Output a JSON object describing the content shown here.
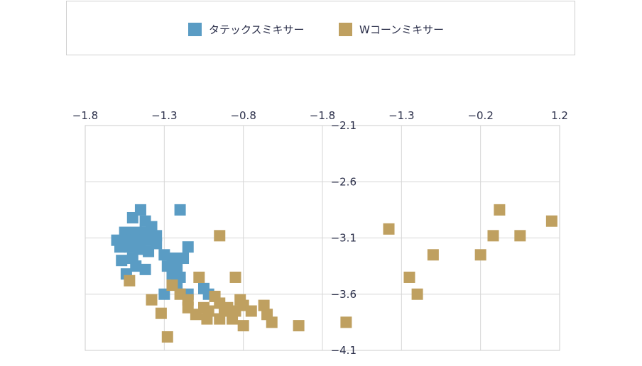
{
  "chart_data": {
    "type": "scatter",
    "title": "",
    "legend_position": "top",
    "grid": true,
    "x_ticks_bottom_row_top": [
      "−1.8",
      "−1.3",
      "−0.8",
      "−1.8",
      "−1.3",
      "−0.2",
      "1.2"
    ],
    "y_ticks_right": [
      "−2.1",
      "−2.6",
      "−3.1",
      "−3.6",
      "−4.1"
    ],
    "xlim": [
      -1.8,
      1.2
    ],
    "ylim": [
      -4.1,
      -2.1
    ],
    "series": [
      {
        "name": "タテックスミキサー",
        "color": "#5a9cc4",
        "points": [
          [
            -1.45,
            -2.85
          ],
          [
            -1.2,
            -2.85
          ],
          [
            -1.5,
            -2.92
          ],
          [
            -1.42,
            -2.95
          ],
          [
            -1.38,
            -3.0
          ],
          [
            -1.55,
            -3.05
          ],
          [
            -1.48,
            -3.05
          ],
          [
            -1.42,
            -3.05
          ],
          [
            -1.35,
            -3.08
          ],
          [
            -1.6,
            -3.12
          ],
          [
            -1.55,
            -3.12
          ],
          [
            -1.5,
            -3.12
          ],
          [
            -1.45,
            -3.12
          ],
          [
            -1.4,
            -3.12
          ],
          [
            -1.35,
            -3.15
          ],
          [
            -1.58,
            -3.18
          ],
          [
            -1.52,
            -3.18
          ],
          [
            -1.46,
            -3.2
          ],
          [
            -1.4,
            -3.22
          ],
          [
            -1.15,
            -3.18
          ],
          [
            -1.3,
            -3.25
          ],
          [
            -1.25,
            -3.28
          ],
          [
            -1.18,
            -3.28
          ],
          [
            -1.5,
            -3.28
          ],
          [
            -1.57,
            -3.3
          ],
          [
            -1.48,
            -3.35
          ],
          [
            -1.42,
            -3.38
          ],
          [
            -1.28,
            -3.35
          ],
          [
            -1.22,
            -3.38
          ],
          [
            -1.54,
            -3.42
          ],
          [
            -1.25,
            -3.42
          ],
          [
            -1.2,
            -3.45
          ],
          [
            -1.22,
            -3.52
          ],
          [
            -1.05,
            -3.55
          ],
          [
            -1.3,
            -3.6
          ],
          [
            -1.15,
            -3.6
          ],
          [
            -1.02,
            -3.6
          ]
        ]
      },
      {
        "name": "Wコーンミキサー",
        "color": "#bfa060",
        "points": [
          [
            -0.95,
            -3.08
          ],
          [
            -1.08,
            -3.45
          ],
          [
            -0.85,
            -3.45
          ],
          [
            -1.52,
            -3.48
          ],
          [
            -1.25,
            -3.52
          ],
          [
            -1.38,
            -3.65
          ],
          [
            -1.2,
            -3.6
          ],
          [
            -1.15,
            -3.65
          ],
          [
            -0.98,
            -3.62
          ],
          [
            -0.82,
            -3.65
          ],
          [
            -0.95,
            -3.68
          ],
          [
            -1.05,
            -3.72
          ],
          [
            -0.9,
            -3.72
          ],
          [
            -0.8,
            -3.7
          ],
          [
            -1.15,
            -3.72
          ],
          [
            -1.02,
            -3.75
          ],
          [
            -0.92,
            -3.75
          ],
          [
            -0.85,
            -3.75
          ],
          [
            -0.75,
            -3.75
          ],
          [
            -0.67,
            -3.7
          ],
          [
            -0.65,
            -3.78
          ],
          [
            -1.32,
            -3.77
          ],
          [
            -1.1,
            -3.78
          ],
          [
            -1.03,
            -3.82
          ],
          [
            -0.95,
            -3.82
          ],
          [
            -0.87,
            -3.82
          ],
          [
            -0.62,
            -3.85
          ],
          [
            -0.8,
            -3.88
          ],
          [
            -0.45,
            -3.88
          ],
          [
            -1.28,
            -3.98
          ],
          [
            -0.15,
            -3.85
          ],
          [
            0.12,
            -3.02
          ],
          [
            0.25,
            -3.45
          ],
          [
            0.3,
            -3.6
          ],
          [
            0.4,
            -3.25
          ],
          [
            0.7,
            -3.25
          ],
          [
            0.78,
            -3.08
          ],
          [
            0.82,
            -2.85
          ],
          [
            0.95,
            -3.08
          ],
          [
            1.15,
            -2.95
          ]
        ]
      }
    ]
  }
}
